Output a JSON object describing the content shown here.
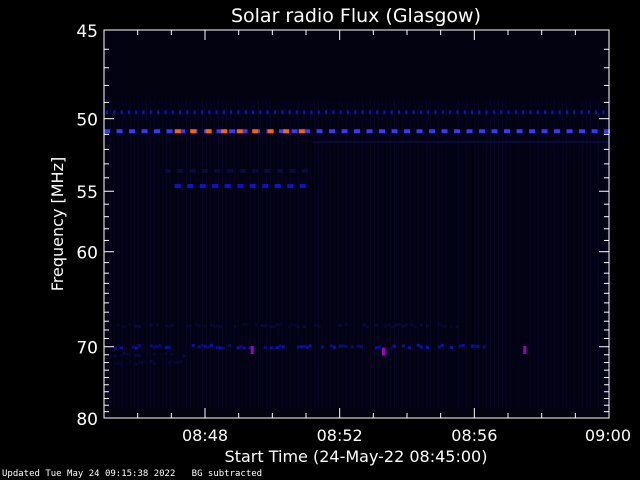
{
  "chart_data": {
    "type": "heatmap",
    "title": "Solar radio Flux (Glasgow)",
    "xlabel": "Start Time (24-May-22 08:45:00)",
    "ylabel": "Frequency [MHz]",
    "x_ticks": [
      "08:48",
      "08:52",
      "08:56",
      "09:00"
    ],
    "x_tick_minutes": [
      48,
      52,
      56,
      60
    ],
    "xlim_minutes": [
      45,
      60
    ],
    "y_ticks": [
      45,
      50,
      55,
      60,
      70,
      80
    ],
    "ylim_mhz": [
      45,
      80
    ],
    "y_scale": "reciprocal",
    "colors": {
      "background": "#000000",
      "plot_background": "#020210",
      "axis": "#ffffff",
      "low": "#0a0a3c",
      "mid": "#1010d0",
      "high": "#3838ff",
      "peak_purple": "#a000c0",
      "peak_orange": "#ff6000"
    },
    "features": [
      {
        "freq": 49.6,
        "t_start": 45.0,
        "t_end": 60.0,
        "level": "mid",
        "pattern": "dotted"
      },
      {
        "freq": 50.8,
        "t_start": 45.0,
        "t_end": 60.0,
        "level": "high",
        "pattern": "dashed"
      },
      {
        "freq": 50.8,
        "t_start": 47.1,
        "t_end": 51.3,
        "level": "peak_orange",
        "pattern": "dashed"
      },
      {
        "freq": 51.5,
        "t_start": 51.2,
        "t_end": 60.0,
        "level": "low",
        "pattern": "solid"
      },
      {
        "freq": 53.5,
        "t_start": 46.8,
        "t_end": 51.1,
        "level": "low",
        "pattern": "dashed"
      },
      {
        "freq": 54.6,
        "t_start": 47.1,
        "t_end": 51.1,
        "level": "mid",
        "pattern": "dashed"
      },
      {
        "freq": 67.5,
        "t_start": 45.2,
        "t_end": 55.5,
        "level": "low",
        "pattern": "speckled"
      },
      {
        "freq": 70.0,
        "t_start": 45.2,
        "t_end": 56.5,
        "level": "mid",
        "pattern": "speckled"
      },
      {
        "freq": 71.0,
        "t_start": 45.2,
        "t_end": 47.5,
        "level": "low",
        "pattern": "speckled"
      },
      {
        "freq": 72.0,
        "t_start": 45.2,
        "t_end": 47.5,
        "level": "low",
        "pattern": "speckled"
      }
    ],
    "peaks": [
      {
        "freq": 70.4,
        "t": 49.4,
        "level": "peak_purple"
      },
      {
        "freq": 70.6,
        "t": 53.3,
        "level": "peak_purple"
      },
      {
        "freq": 70.4,
        "t": 57.5,
        "level": "peak_purple"
      }
    ]
  },
  "footer": {
    "updated": "Updated Tue May 24 09:15:38 2022",
    "bg_note": "BG subtracted"
  }
}
